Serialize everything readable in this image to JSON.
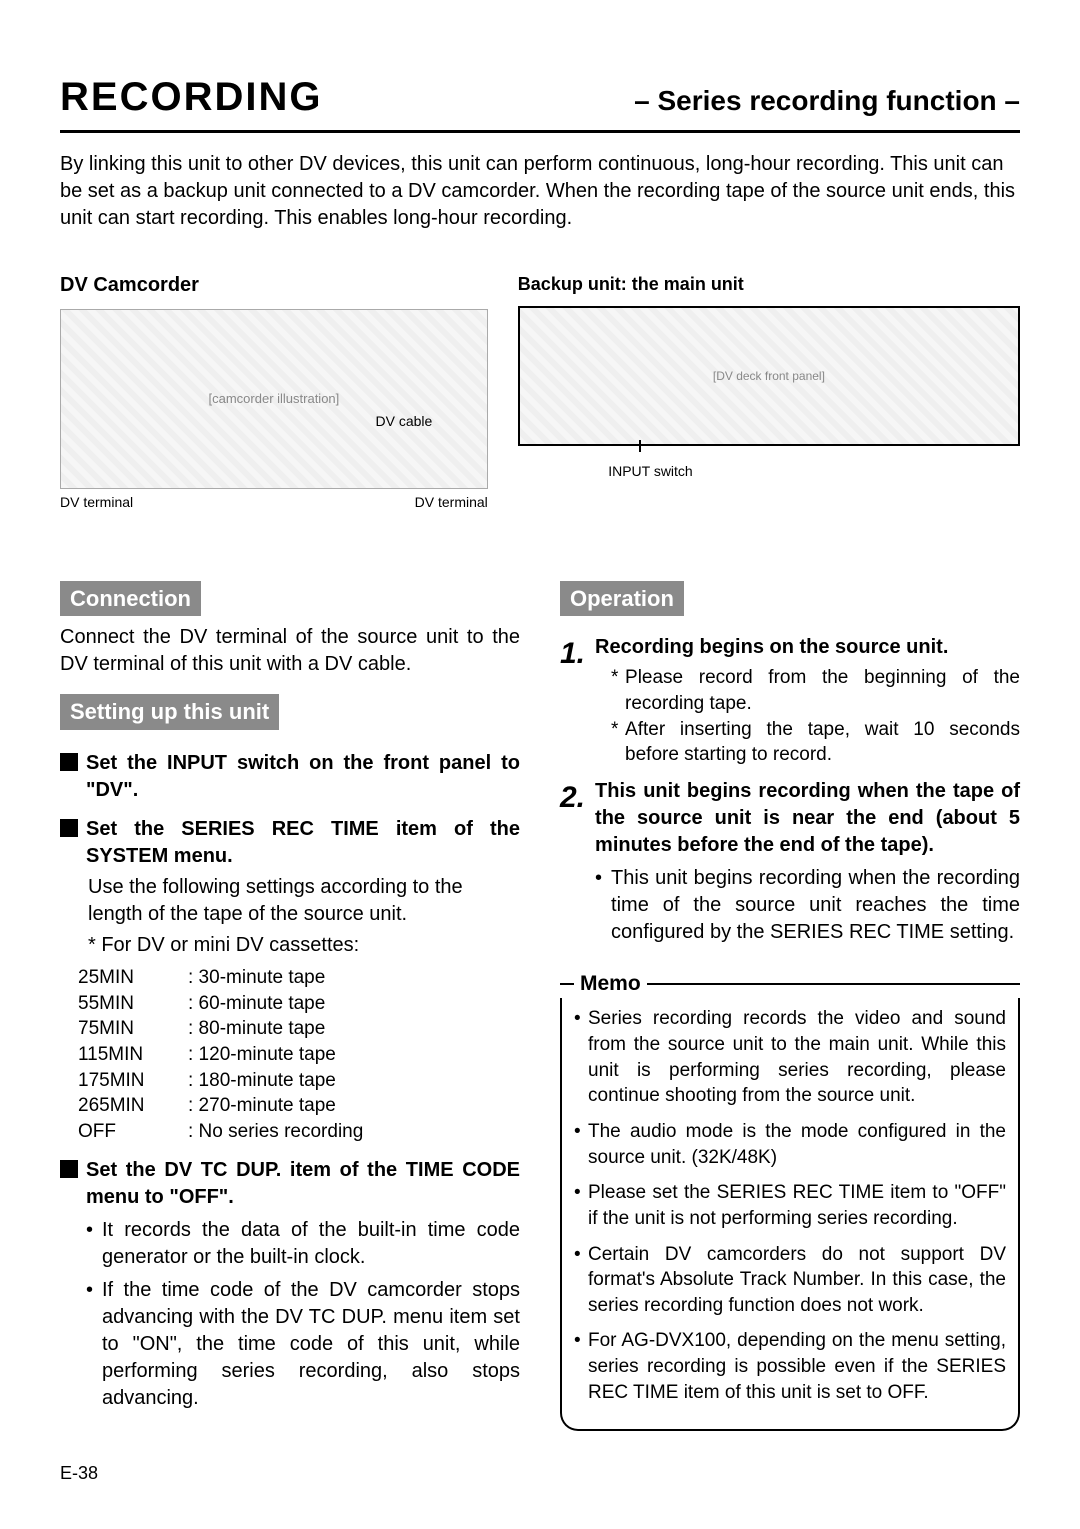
{
  "header": {
    "title": "RECORDING",
    "subtitle": "– Series recording function –"
  },
  "intro": "By linking this unit to other DV devices, this unit can perform continuous, long-hour recording. This unit can be set as a backup unit connected to a DV camcorder. When the recording tape of the source unit ends, this unit can start recording. This enables long-hour recording.",
  "diagram": {
    "left_label": "DV Camcorder",
    "cable": "DV cable",
    "dv_term_l": "DV terminal",
    "dv_term_r": "DV terminal",
    "right_label": "Backup unit: the main unit",
    "input_switch": "INPUT switch"
  },
  "left": {
    "connection": {
      "tag": "Connection",
      "text": "Connect the DV terminal of the source unit to the DV terminal of this unit with a DV cable."
    },
    "setup": {
      "tag": "Setting up this unit",
      "b1": "Set the INPUT switch on the front panel to \"DV\".",
      "b2": "Set the SERIES REC TIME item of the SYSTEM menu.",
      "b2_sub": "Use the following settings according to the length of the tape of the source unit.",
      "b2_note": "* For DV or mini DV cassettes:",
      "table": [
        {
          "k": "25MIN",
          "v": ": 30-minute tape"
        },
        {
          "k": "55MIN",
          "v": ": 60-minute tape"
        },
        {
          "k": "75MIN",
          "v": ": 80-minute tape"
        },
        {
          "k": "115MIN",
          "v": ": 120-minute tape"
        },
        {
          "k": "175MIN",
          "v": ": 180-minute tape"
        },
        {
          "k": "265MIN",
          "v": ": 270-minute tape"
        },
        {
          "k": "OFF",
          "v": ": No series recording"
        }
      ],
      "b3": "Set the DV TC DUP. item of the TIME CODE menu to \"OFF\".",
      "b3_bul1": "It records the data of the built-in time code generator or the built-in clock.",
      "b3_bul2": "If the time code of the DV camcorder stops advancing with the DV TC DUP. menu item set to \"ON\", the time code of this unit, while performing series recording, also stops advancing."
    }
  },
  "right": {
    "operation": {
      "tag": "Operation",
      "s1_title": "Recording begins on the source unit.",
      "s1_star1": "Please record from the beginning of the recording tape.",
      "s1_star2": "After inserting the tape, wait 10 seconds before starting to record.",
      "s2_title": "This unit begins recording when the tape of the source unit is near the end (about 5 minutes before the end of the tape).",
      "s2_bul": "This unit begins recording when the recording time of the source unit reaches the time configured by the SERIES REC TIME setting."
    },
    "memo": {
      "title": "Memo",
      "items": [
        "Series recording records the video and sound from the source unit to the main unit. While this unit is performing series recording, please continue shooting from the source unit.",
        "The audio mode is the mode configured in the source unit. (32K/48K)",
        "Please set the SERIES REC TIME item to \"OFF\" if the unit is not performing series recording.",
        "Certain DV camcorders do not support DV format's Absolute Track Number. In this case, the series recording function does not work.",
        "For AG-DVX100, depending on the menu setting, series recording is possible even if the SERIES REC TIME item of this unit is set to OFF."
      ]
    }
  },
  "page": "E-38"
}
